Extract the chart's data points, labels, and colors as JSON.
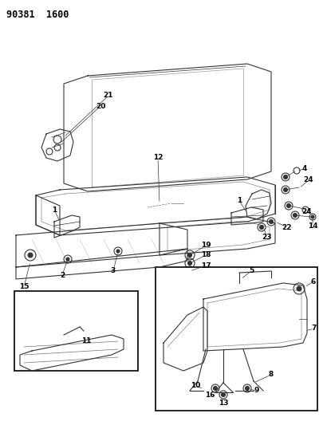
{
  "title": "90381  1600",
  "bg": "#ffffff",
  "lc": "#333333",
  "fig_w": 4.06,
  "fig_h": 5.33,
  "dpi": 100
}
